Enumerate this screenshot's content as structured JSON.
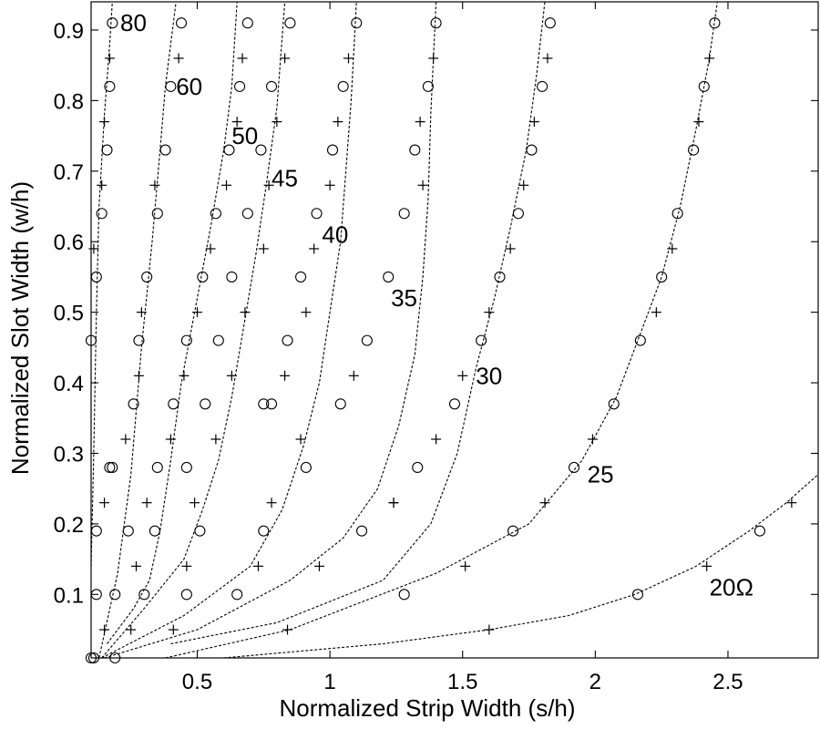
{
  "chart_data": {
    "type": "line",
    "title": "",
    "xlabel": "Normalized Strip Width (s/h)",
    "ylabel": "Normalized Slot Width (w/h)",
    "xlim": [
      0.1,
      2.84
    ],
    "ylim": [
      0.01,
      0.94
    ],
    "x_ticks": [
      0.5,
      1,
      1.5,
      2,
      2.5
    ],
    "x_tick_labels": [
      "0.5",
      "1",
      "1.5",
      "2",
      "2.5"
    ],
    "y_ticks": [
      0.1,
      0.2,
      0.3,
      0.4,
      0.5,
      0.6,
      0.7,
      0.8,
      0.9
    ],
    "y_tick_labels": [
      "0.1",
      "0.2",
      "0.3",
      "0.4",
      "0.5",
      "0.6",
      "0.7",
      "0.8",
      "0.9"
    ],
    "grid": false,
    "legend": "none",
    "series": [
      {
        "label": "80",
        "label_at": [
          0.21,
          0.91
        ],
        "curve": [
          [
            0.1,
            0.14
          ],
          [
            0.11,
            0.3
          ],
          [
            0.12,
            0.5
          ],
          [
            0.13,
            0.65
          ],
          [
            0.15,
            0.78
          ],
          [
            0.17,
            0.88
          ],
          [
            0.18,
            0.94
          ]
        ],
        "circles": [
          [
            0.1,
            0.01
          ],
          [
            0.12,
            0.1
          ],
          [
            0.12,
            0.19
          ],
          [
            0.17,
            0.28
          ],
          [
            0.1,
            0.46
          ],
          [
            0.12,
            0.55
          ],
          [
            0.14,
            0.64
          ],
          [
            0.16,
            0.73
          ],
          [
            0.17,
            0.82
          ],
          [
            0.18,
            0.91
          ]
        ],
        "plusses": [
          [
            0.15,
            0.05
          ],
          [
            0.15,
            0.23
          ],
          [
            0.11,
            0.59
          ],
          [
            0.14,
            0.68
          ],
          [
            0.15,
            0.77
          ],
          [
            0.17,
            0.86
          ]
        ]
      },
      {
        "label": "60",
        "label_at": [
          0.42,
          0.82
        ],
        "curve": [
          [
            0.13,
            0.01
          ],
          [
            0.2,
            0.13
          ],
          [
            0.25,
            0.27
          ],
          [
            0.29,
            0.45
          ],
          [
            0.33,
            0.6
          ],
          [
            0.36,
            0.73
          ],
          [
            0.38,
            0.82
          ],
          [
            0.42,
            0.94
          ]
        ],
        "circles": [
          [
            0.11,
            0.01
          ],
          [
            0.19,
            0.01
          ],
          [
            0.19,
            0.1
          ],
          [
            0.24,
            0.19
          ],
          [
            0.26,
            0.37
          ],
          [
            0.28,
            0.46
          ],
          [
            0.31,
            0.55
          ],
          [
            0.35,
            0.64
          ],
          [
            0.38,
            0.73
          ],
          [
            0.4,
            0.82
          ],
          [
            0.44,
            0.91
          ],
          [
            0.18,
            0.28
          ]
        ],
        "plusses": [
          [
            0.23,
            0.32
          ],
          [
            0.29,
            0.5
          ],
          [
            0.34,
            0.68
          ],
          [
            0.43,
            0.86
          ],
          [
            0.28,
            0.41
          ]
        ]
      },
      {
        "label": "50",
        "label_at": [
          0.63,
          0.75
        ],
        "curve": [
          [
            0.16,
            0.03
          ],
          [
            0.26,
            0.08
          ],
          [
            0.32,
            0.12
          ],
          [
            0.36,
            0.19
          ],
          [
            0.4,
            0.29
          ],
          [
            0.44,
            0.4
          ],
          [
            0.5,
            0.52
          ],
          [
            0.55,
            0.62
          ],
          [
            0.6,
            0.73
          ],
          [
            0.63,
            0.82
          ],
          [
            0.65,
            0.94
          ]
        ],
        "circles": [
          [
            0.3,
            0.1
          ],
          [
            0.34,
            0.19
          ],
          [
            0.35,
            0.28
          ],
          [
            0.41,
            0.37
          ],
          [
            0.46,
            0.46
          ],
          [
            0.52,
            0.55
          ],
          [
            0.57,
            0.64
          ],
          [
            0.62,
            0.73
          ],
          [
            0.66,
            0.82
          ],
          [
            0.69,
            0.91
          ]
        ],
        "plusses": [
          [
            0.25,
            0.05
          ],
          [
            0.27,
            0.14
          ],
          [
            0.31,
            0.23
          ],
          [
            0.4,
            0.32
          ],
          [
            0.45,
            0.41
          ],
          [
            0.5,
            0.5
          ],
          [
            0.55,
            0.59
          ],
          [
            0.61,
            0.68
          ],
          [
            0.65,
            0.77
          ],
          [
            0.67,
            0.86
          ]
        ]
      },
      {
        "label": "45",
        "label_at": [
          0.78,
          0.69
        ],
        "curve": [
          [
            0.14,
            0.01
          ],
          [
            0.3,
            0.08
          ],
          [
            0.45,
            0.15
          ],
          [
            0.52,
            0.22
          ],
          [
            0.58,
            0.29
          ],
          [
            0.63,
            0.38
          ],
          [
            0.68,
            0.49
          ],
          [
            0.72,
            0.58
          ],
          [
            0.76,
            0.68
          ],
          [
            0.8,
            0.79
          ],
          [
            0.83,
            0.94
          ]
        ],
        "circles": [
          [
            0.46,
            0.1
          ],
          [
            0.51,
            0.19
          ],
          [
            0.46,
            0.28
          ],
          [
            0.53,
            0.37
          ],
          [
            0.58,
            0.46
          ],
          [
            0.63,
            0.55
          ],
          [
            0.69,
            0.64
          ],
          [
            0.74,
            0.73
          ],
          [
            0.78,
            0.82
          ],
          [
            0.85,
            0.91
          ]
        ],
        "plusses": [
          [
            0.41,
            0.05
          ],
          [
            0.46,
            0.14
          ],
          [
            0.49,
            0.23
          ],
          [
            0.57,
            0.32
          ],
          [
            0.63,
            0.41
          ],
          [
            0.68,
            0.5
          ],
          [
            0.75,
            0.59
          ],
          [
            0.77,
            0.68
          ],
          [
            0.8,
            0.77
          ],
          [
            0.83,
            0.86
          ]
        ]
      },
      {
        "label": "40",
        "label_at": [
          0.97,
          0.61
        ],
        "curve": [
          [
            0.14,
            0.01
          ],
          [
            0.45,
            0.07
          ],
          [
            0.7,
            0.14
          ],
          [
            0.82,
            0.22
          ],
          [
            0.9,
            0.31
          ],
          [
            0.96,
            0.4
          ],
          [
            1.0,
            0.5
          ],
          [
            1.04,
            0.6
          ],
          [
            1.06,
            0.7
          ],
          [
            1.08,
            0.8
          ],
          [
            1.1,
            0.94
          ]
        ],
        "circles": [
          [
            0.75,
            0.19
          ],
          [
            0.91,
            0.28
          ],
          [
            0.78,
            0.37
          ],
          [
            0.75,
            0.37
          ],
          [
            0.84,
            0.46
          ],
          [
            0.89,
            0.55
          ],
          [
            0.95,
            0.64
          ],
          [
            1.01,
            0.73
          ],
          [
            1.05,
            0.82
          ],
          [
            1.1,
            0.91
          ]
        ],
        "plusses": [
          [
            0.73,
            0.14
          ],
          [
            0.78,
            0.23
          ],
          [
            0.89,
            0.32
          ],
          [
            0.83,
            0.41
          ],
          [
            0.91,
            0.5
          ],
          [
            0.94,
            0.59
          ],
          [
            1.0,
            0.68
          ],
          [
            1.03,
            0.77
          ],
          [
            1.07,
            0.86
          ]
        ]
      },
      {
        "label": "35",
        "label_at": [
          1.23,
          0.52
        ],
        "curve": [
          [
            0.15,
            0.01
          ],
          [
            0.5,
            0.05
          ],
          [
            0.85,
            0.12
          ],
          [
            1.05,
            0.18
          ],
          [
            1.18,
            0.25
          ],
          [
            1.26,
            0.34
          ],
          [
            1.32,
            0.44
          ],
          [
            1.35,
            0.55
          ],
          [
            1.37,
            0.66
          ],
          [
            1.38,
            0.78
          ],
          [
            1.4,
            0.94
          ]
        ],
        "circles": [
          [
            0.65,
            0.1
          ],
          [
            1.12,
            0.19
          ],
          [
            1.04,
            0.37
          ],
          [
            1.14,
            0.46
          ],
          [
            1.22,
            0.55
          ],
          [
            1.28,
            0.64
          ],
          [
            1.32,
            0.73
          ],
          [
            1.37,
            0.82
          ],
          [
            1.4,
            0.91
          ]
        ],
        "plusses": [
          [
            0.96,
            0.14
          ],
          [
            1.24,
            0.23
          ],
          [
            1.09,
            0.41
          ],
          [
            1.35,
            0.68
          ],
          [
            1.34,
            0.77
          ],
          [
            1.39,
            0.86
          ]
        ]
      },
      {
        "label": "30",
        "label_at": [
          1.55,
          0.41
        ],
        "curve": [
          [
            0.4,
            0.03
          ],
          [
            0.8,
            0.06
          ],
          [
            1.2,
            0.12
          ],
          [
            1.38,
            0.2
          ],
          [
            1.48,
            0.3
          ],
          [
            1.55,
            0.42
          ],
          [
            1.62,
            0.52
          ],
          [
            1.68,
            0.62
          ],
          [
            1.74,
            0.73
          ],
          [
            1.78,
            0.84
          ],
          [
            1.81,
            0.94
          ]
        ],
        "circles": [
          [
            1.28,
            0.1
          ],
          [
            1.33,
            0.28
          ],
          [
            1.47,
            0.37
          ],
          [
            1.57,
            0.46
          ],
          [
            1.64,
            0.55
          ],
          [
            1.71,
            0.64
          ],
          [
            1.76,
            0.73
          ],
          [
            1.8,
            0.82
          ],
          [
            1.83,
            0.91
          ]
        ],
        "plusses": [
          [
            1.24,
            0.23
          ],
          [
            1.4,
            0.32
          ],
          [
            1.5,
            0.41
          ],
          [
            1.6,
            0.5
          ],
          [
            1.68,
            0.59
          ],
          [
            1.73,
            0.68
          ],
          [
            1.77,
            0.77
          ],
          [
            1.82,
            0.86
          ]
        ]
      },
      {
        "label": "25",
        "label_at": [
          1.97,
          0.27
        ],
        "curve": [
          [
            0.38,
            0.01
          ],
          [
            0.85,
            0.05
          ],
          [
            1.4,
            0.13
          ],
          [
            1.75,
            0.2
          ],
          [
            1.95,
            0.29
          ],
          [
            2.08,
            0.38
          ],
          [
            2.17,
            0.47
          ],
          [
            2.25,
            0.55
          ],
          [
            2.32,
            0.65
          ],
          [
            2.38,
            0.76
          ],
          [
            2.43,
            0.86
          ],
          [
            2.46,
            0.94
          ]
        ],
        "circles": [
          [
            1.69,
            0.19
          ],
          [
            1.92,
            0.28
          ],
          [
            2.07,
            0.37
          ],
          [
            2.17,
            0.46
          ],
          [
            2.25,
            0.55
          ],
          [
            2.31,
            0.64
          ],
          [
            2.37,
            0.73
          ],
          [
            2.41,
            0.82
          ],
          [
            2.45,
            0.91
          ]
        ],
        "plusses": [
          [
            0.84,
            0.05
          ],
          [
            1.51,
            0.14
          ],
          [
            1.81,
            0.23
          ],
          [
            1.99,
            0.32
          ],
          [
            2.23,
            0.5
          ],
          [
            2.29,
            0.59
          ],
          [
            2.39,
            0.77
          ],
          [
            2.43,
            0.86
          ]
        ]
      },
      {
        "label": "20Ω",
        "label_at": [
          2.43,
          0.11
        ],
        "curve": [
          [
            0.6,
            0.01
          ],
          [
            1.2,
            0.03
          ],
          [
            1.6,
            0.05
          ],
          [
            1.9,
            0.07
          ],
          [
            2.15,
            0.1
          ],
          [
            2.38,
            0.14
          ],
          [
            2.58,
            0.19
          ],
          [
            2.72,
            0.23
          ],
          [
            2.84,
            0.27
          ]
        ],
        "circles": [
          [
            2.16,
            0.1
          ],
          [
            2.62,
            0.19
          ]
        ],
        "plusses": [
          [
            1.6,
            0.05
          ],
          [
            2.42,
            0.14
          ],
          [
            2.74,
            0.23
          ]
        ]
      }
    ]
  }
}
